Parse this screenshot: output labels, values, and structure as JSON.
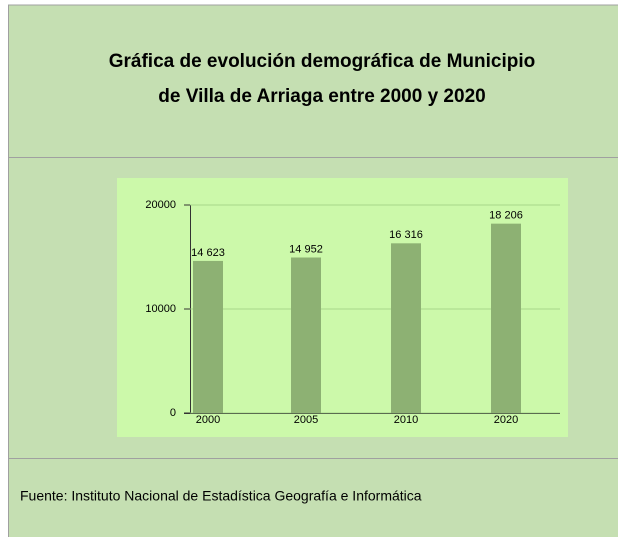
{
  "header": {
    "title_lines": [
      "Gráfica de evolución demográfica de Municipio",
      "de Villa de Arriaga entre 2000 y 2020"
    ]
  },
  "chart_data": {
    "type": "bar",
    "categories": [
      "2000",
      "2005",
      "2010",
      "2020"
    ],
    "values": [
      14623,
      14952,
      16316,
      18206
    ],
    "value_labels": [
      "14 623",
      "14 952",
      "16 316",
      "18 206"
    ],
    "color": "#8db173",
    "ylim": [
      0,
      20000
    ],
    "yticks": [
      0,
      10000,
      20000
    ],
    "grid": true
  },
  "footer": {
    "text": "Fuente: Instituto Nacional de Estadística Geografía e Informática"
  }
}
